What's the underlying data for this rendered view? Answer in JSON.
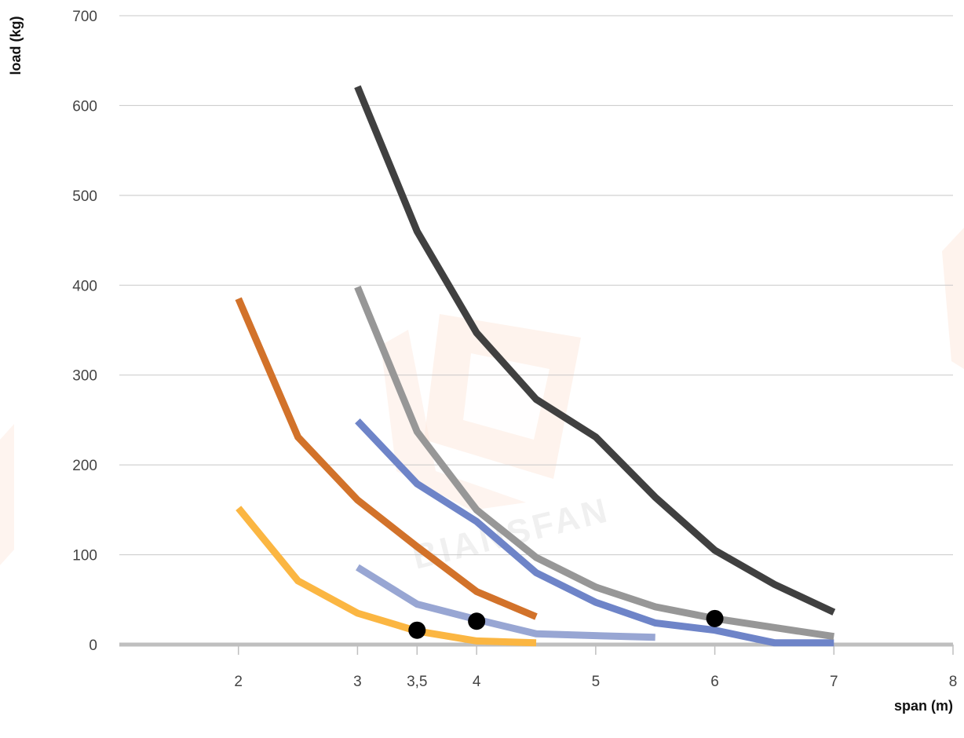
{
  "chart_data": {
    "type": "line",
    "xlabel": "span (m)",
    "ylabel": "load (kg)",
    "xlim": [
      1,
      8
    ],
    "ylim": [
      0,
      700
    ],
    "x_ticks": [
      {
        "value": 2,
        "label": "2"
      },
      {
        "value": 3,
        "label": "3"
      },
      {
        "value": 3.5,
        "label": "3,5"
      },
      {
        "value": 4,
        "label": "4"
      },
      {
        "value": 5,
        "label": "5"
      },
      {
        "value": 6,
        "label": "6"
      },
      {
        "value": 7,
        "label": "7"
      },
      {
        "value": 8,
        "label": "8"
      }
    ],
    "y_ticks": [
      {
        "value": 0,
        "label": "0"
      },
      {
        "value": 100,
        "label": "100"
      },
      {
        "value": 200,
        "label": "200"
      },
      {
        "value": 300,
        "label": "300"
      },
      {
        "value": 400,
        "label": "400"
      },
      {
        "value": 500,
        "label": "500"
      },
      {
        "value": 600,
        "label": "600"
      },
      {
        "value": 700,
        "label": "700"
      }
    ],
    "grid": true,
    "legend": "none",
    "series": [
      {
        "color": "#fbb642",
        "points": [
          [
            2,
            152
          ],
          [
            2.5,
            71
          ],
          [
            3,
            35
          ],
          [
            3.5,
            15
          ],
          [
            4,
            4
          ],
          [
            4.5,
            2
          ]
        ]
      },
      {
        "color": "#d2722a",
        "points": [
          [
            2,
            385
          ],
          [
            2.5,
            231
          ],
          [
            3,
            161
          ],
          [
            3.5,
            109
          ],
          [
            4,
            59
          ],
          [
            4.5,
            31
          ]
        ]
      },
      {
        "color": "#98a6d3",
        "points": [
          [
            3,
            86
          ],
          [
            3.5,
            45
          ],
          [
            4,
            28
          ],
          [
            4.5,
            12
          ],
          [
            5,
            10
          ],
          [
            5.5,
            8
          ]
        ]
      },
      {
        "color": "#6e84c8",
        "points": [
          [
            3,
            249
          ],
          [
            3.5,
            179
          ],
          [
            4,
            137
          ],
          [
            4.5,
            80
          ],
          [
            5,
            47
          ],
          [
            5.5,
            24
          ],
          [
            6,
            16
          ],
          [
            6.5,
            2
          ],
          [
            7,
            2
          ]
        ]
      },
      {
        "color": "#979797",
        "points": [
          [
            3,
            398
          ],
          [
            3.5,
            237
          ],
          [
            4,
            150
          ],
          [
            4.5,
            97
          ],
          [
            5,
            64
          ],
          [
            5.5,
            42
          ],
          [
            6,
            29
          ],
          [
            6.5,
            19
          ],
          [
            7,
            9
          ]
        ]
      },
      {
        "color": "#404040",
        "points": [
          [
            3,
            621
          ],
          [
            3.5,
            460
          ],
          [
            4,
            347
          ],
          [
            4.5,
            273
          ],
          [
            5,
            231
          ],
          [
            5.5,
            164
          ],
          [
            6,
            105
          ],
          [
            6.5,
            67
          ],
          [
            7,
            36
          ]
        ]
      }
    ],
    "markers": [
      {
        "x": 3.5,
        "y": 16
      },
      {
        "x": 4,
        "y": 26
      },
      {
        "x": 6,
        "y": 29
      }
    ],
    "watermark": "BIANSFAN"
  }
}
